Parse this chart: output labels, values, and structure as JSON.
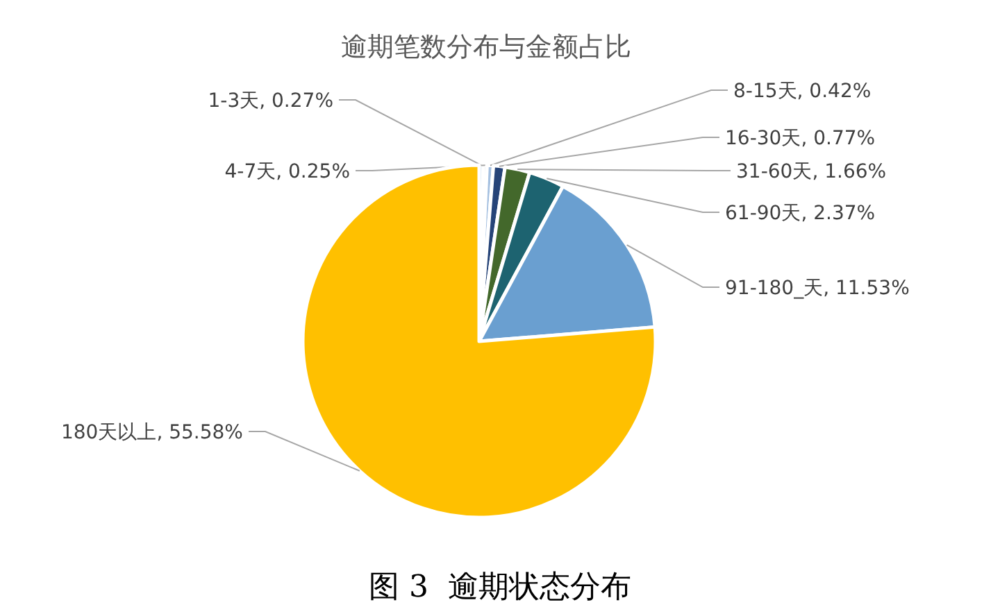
{
  "chart_data": {
    "type": "pie",
    "title": "逾期笔数分布与金额占比",
    "categories": [
      "1-3天",
      "4-7天",
      "8-15天",
      "16-30天",
      "31-60天",
      "61-90天",
      "91-180_天",
      "180天以上"
    ],
    "values": [
      0.27,
      0.25,
      0.42,
      0.77,
      1.66,
      2.37,
      11.53,
      55.58
    ],
    "colors": [
      "#9dc3e6",
      "#d6dce5",
      "#a5c0e0",
      "#264478",
      "#43682b",
      "#1d6370",
      "#6a9fd0",
      "#ffc000"
    ],
    "value_labels": [
      ", 0.27%",
      ", 0.25%",
      ", 0.42%",
      ", 0.77%",
      ", 1.66%",
      ", 2.37%",
      ", 11.53%",
      ", 55.58%"
    ],
    "annotations": [
      "图 3  逾期状态分布"
    ]
  }
}
